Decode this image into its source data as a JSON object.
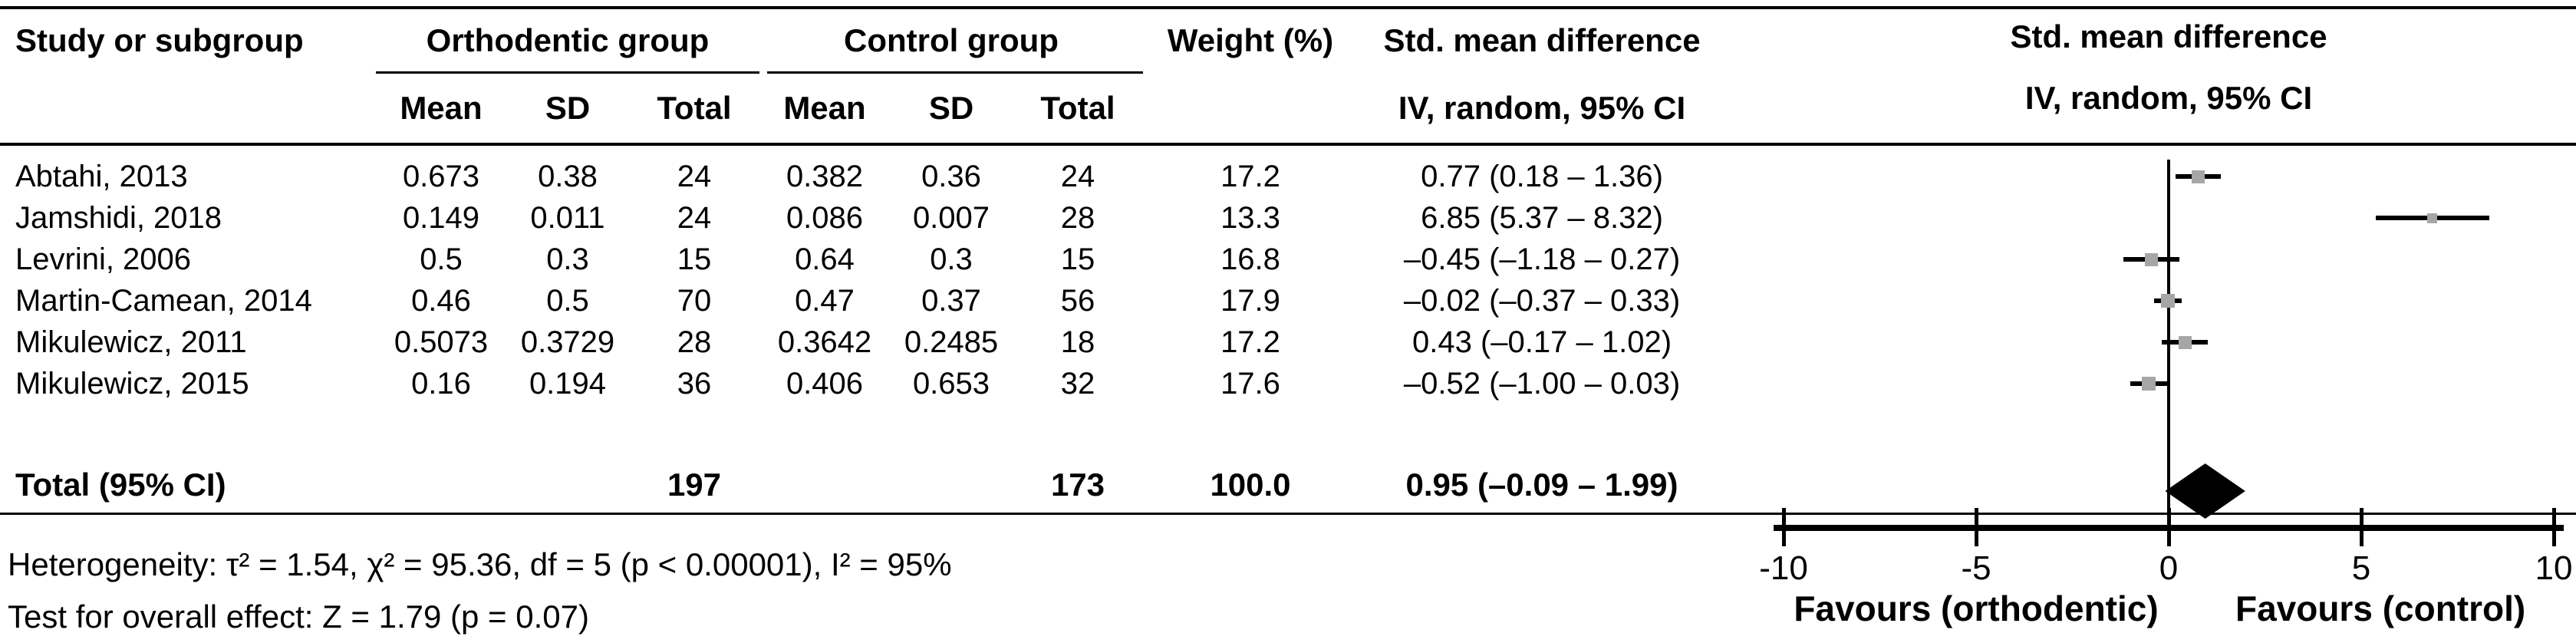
{
  "table": {
    "headers": {
      "study": "Study or subgroup",
      "ortho_group": "Orthodentic group",
      "control_group": "Control group",
      "weight": "Weight (%)",
      "smd_line1": "Std. mean difference",
      "smd_line2": "IV, random, 95% CI",
      "mean": "Mean",
      "sd": "SD",
      "total": "Total"
    },
    "rows": [
      {
        "study": "Abtahi, 2013",
        "o_mean": "0.673",
        "o_sd": "0.38",
        "o_total": "24",
        "c_mean": "0.382",
        "c_sd": "0.36",
        "c_total": "24",
        "weight": "17.2",
        "smd": "0.77 (0.18 – 1.36)"
      },
      {
        "study": "Jamshidi, 2018",
        "o_mean": "0.149",
        "o_sd": "0.011",
        "o_total": "24",
        "c_mean": "0.086",
        "c_sd": "0.007",
        "c_total": "28",
        "weight": "13.3",
        "smd": "6.85 (5.37 – 8.32)"
      },
      {
        "study": "Levrini, 2006",
        "o_mean": "0.5",
        "o_sd": "0.3",
        "o_total": "15",
        "c_mean": "0.64",
        "c_sd": "0.3",
        "c_total": "15",
        "weight": "16.8",
        "smd": "–0.45 (–1.18 – 0.27)"
      },
      {
        "study": "Martin-Camean, 2014",
        "o_mean": "0.46",
        "o_sd": "0.5",
        "o_total": "70",
        "c_mean": "0.47",
        "c_sd": "0.37",
        "c_total": "56",
        "weight": "17.9",
        "smd": "–0.02 (–0.37 – 0.33)"
      },
      {
        "study": "Mikulewicz, 2011",
        "o_mean": "0.5073",
        "o_sd": "0.3729",
        "o_total": "28",
        "c_mean": "0.3642",
        "c_sd": "0.2485",
        "c_total": "18",
        "weight": "17.2",
        "smd": "0.43 (–0.17 – 1.02)"
      },
      {
        "study": "Mikulewicz, 2015",
        "o_mean": "0.16",
        "o_sd": "0.194",
        "o_total": "36",
        "c_mean": "0.406",
        "c_sd": "0.653",
        "c_total": "32",
        "weight": "17.6",
        "smd": "–0.52 (–1.00 – 0.03)"
      }
    ],
    "total_row": {
      "label": "Total (95% CI)",
      "o_total": "197",
      "c_total": "173",
      "weight": "100.0",
      "smd": "0.95 (–0.09 – 1.99)"
    }
  },
  "plot_header": {
    "line1": "Std. mean difference",
    "line2": "IV, random, 95% CI"
  },
  "footnotes": {
    "heterogeneity": "Heterogeneity: τ² = 1.54, χ² = 95.36, df = 5 (p < 0.00001), I² = 95%",
    "overall_effect": "Test for overall effect: Z = 1.79 (p = 0.07)"
  },
  "chart_data": {
    "type": "forest",
    "title": "Std. mean difference, IV, random, 95% CI",
    "x_axis": {
      "min": -10,
      "max": 10,
      "ticks": [
        -10,
        -5,
        0,
        5,
        10
      ],
      "tick_labels": [
        "-10",
        "-5",
        "0",
        "5",
        "10"
      ],
      "label_left": "Favours (orthodentic)",
      "label_right": "Favours (control)"
    },
    "marker_color": "#a6a6a6",
    "line_color": "#000000",
    "studies": [
      {
        "name": "Abtahi, 2013",
        "est": 0.77,
        "ci_low": 0.18,
        "ci_high": 1.36,
        "weight_pct": 17.2
      },
      {
        "name": "Jamshidi, 2018",
        "est": 6.85,
        "ci_low": 5.37,
        "ci_high": 8.32,
        "weight_pct": 13.3
      },
      {
        "name": "Levrini, 2006",
        "est": -0.45,
        "ci_low": -1.18,
        "ci_high": 0.27,
        "weight_pct": 16.8
      },
      {
        "name": "Martin-Camean, 2014",
        "est": -0.02,
        "ci_low": -0.37,
        "ci_high": 0.33,
        "weight_pct": 17.9
      },
      {
        "name": "Mikulewicz, 2011",
        "est": 0.43,
        "ci_low": -0.17,
        "ci_high": 1.02,
        "weight_pct": 17.2
      },
      {
        "name": "Mikulewicz, 2015",
        "est": -0.52,
        "ci_low": -1.0,
        "ci_high": 0.03,
        "weight_pct": 17.6
      }
    ],
    "total": {
      "est": 0.95,
      "ci_low": -0.09,
      "ci_high": 1.99
    }
  }
}
